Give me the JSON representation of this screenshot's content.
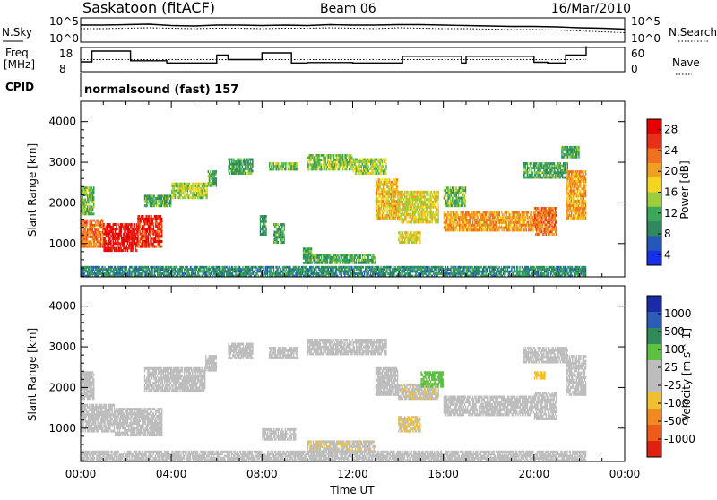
{
  "header": {
    "site": "Saskatoon (fitACF)",
    "beam": "Beam 06",
    "date": "16/Mar/2010"
  },
  "top_panels": {
    "nsky_label": "N.Sky",
    "nsearch_label": "N.Search",
    "nsky_ticks": [
      "10^5",
      "10^0"
    ],
    "freq_label_line1": "Freq.",
    "freq_label_line2": "[MHz]",
    "freq_ticks": [
      "18",
      "8"
    ],
    "nave_label": "Nave",
    "nave_ticks": [
      "60",
      "0"
    ],
    "cpid_label": "CPID",
    "cpid_value": "normalsound (fast) 157"
  },
  "colors": {
    "power_scale": [
      "#1530e8",
      "#2458b8",
      "#2f8860",
      "#3aa858",
      "#9ccd3a",
      "#f5d520",
      "#f0a020",
      "#f07020",
      "#e83018",
      "#e80000"
    ],
    "velocity_scale": [
      "#1a2aa8",
      "#2a5cb8",
      "#2f8c58",
      "#5cc040",
      "#bdbdbd",
      "#bdbdbd",
      "#f0c030",
      "#f08a20",
      "#ee5a18",
      "#e02010"
    ],
    "axis": "#000000",
    "background": "#ffffff"
  },
  "chart_data": [
    {
      "type": "line",
      "title": "N.Sky / N.Search",
      "x_unit": "hours UT",
      "x": [
        0,
        1,
        2,
        3,
        4,
        5,
        6,
        7,
        8,
        9,
        10,
        11,
        12,
        13,
        14,
        15,
        16,
        17,
        18,
        19,
        20,
        21,
        22,
        23,
        24
      ],
      "series": [
        {
          "name": "N.Sky",
          "values": [
            3.6,
            3.6,
            3.7,
            3.8,
            3.5,
            3.4,
            3.6,
            3.6,
            3.5,
            3.6,
            3.5,
            3.7,
            3.6,
            3.6,
            3.7,
            3.7,
            3.6,
            3.5,
            3.4,
            3.3,
            3.3,
            3.2,
            3.0,
            2.9,
            2.7
          ]
        },
        {
          "name": "N.Search",
          "values": [
            2.8,
            2.8,
            2.9,
            3.0,
            2.9,
            2.8,
            2.9,
            2.9,
            2.8,
            2.9,
            2.9,
            3.0,
            2.9,
            2.8,
            3.0,
            2.9,
            2.8,
            2.8,
            2.7,
            2.6,
            2.6,
            2.5,
            2.3,
            2.1,
            1.9
          ]
        }
      ],
      "ylim": [
        0,
        5
      ],
      "yscale": "log10"
    },
    {
      "type": "line",
      "title": "Freq. [MHz] / Nave",
      "x_unit": "hours UT",
      "x": [
        0.0,
        0.5,
        0.5,
        2.2,
        2.2,
        3.8,
        3.8,
        6.0,
        6.0,
        6.5,
        6.5,
        8.0,
        8.0,
        9.3,
        9.3,
        10.0,
        10.0,
        12.0,
        12.0,
        14.2,
        14.2,
        16.8,
        16.8,
        17.0,
        17.0,
        20.0,
        20.0,
        20.6,
        20.6,
        21.2,
        21.2,
        21.4,
        21.4,
        22.3,
        22.3
      ],
      "series": [
        {
          "name": "Freq.",
          "values": [
            12,
            12,
            16.8,
            16.8,
            12.5,
            12.5,
            11.5,
            11.5,
            15,
            15,
            13,
            13,
            16,
            16,
            11.5,
            11.5,
            11.7,
            11.7,
            11.5,
            11.5,
            14.5,
            14.5,
            11.5,
            11.5,
            14.5,
            14.5,
            11.8,
            11.8,
            11.5,
            11.5,
            11.5,
            11.5,
            15,
            15,
            19
          ]
        },
        {
          "name": "Nave",
          "values": [
            30,
            30,
            30,
            30,
            30,
            30,
            30,
            30,
            30,
            30,
            30,
            30,
            30,
            30,
            30,
            30,
            30,
            30,
            30,
            30,
            30,
            30,
            30,
            30,
            30,
            30,
            30,
            30,
            30,
            30,
            30,
            30,
            30,
            30,
            30
          ]
        }
      ],
      "ylim_freq": [
        8,
        18
      ],
      "ylim_nave": [
        0,
        60
      ]
    },
    {
      "type": "heatmap",
      "title": "Power [dB]",
      "xlabel": "",
      "ylabel": "Slant Range [km]",
      "x_ticks": [
        "",
        "",
        "",
        "",
        "",
        "",
        ""
      ],
      "y_ticks": [
        "4000",
        "3000",
        "2000",
        "1000"
      ],
      "xlim": [
        0,
        24
      ],
      "ylim": [
        180,
        4500
      ],
      "colorbar_label": "Power [dB]",
      "colorbar_ticks": [
        "28",
        "24",
        "20",
        "16",
        "12",
        "8",
        "4"
      ],
      "colorbar_range": [
        0,
        30
      ],
      "regions": [
        {
          "t0": 0.0,
          "t1": 1.0,
          "r0": 900,
          "r1": 1600,
          "level": 22
        },
        {
          "t0": 1.0,
          "t1": 2.5,
          "r0": 800,
          "r1": 1500,
          "level": 28
        },
        {
          "t0": 2.5,
          "t1": 3.6,
          "r0": 900,
          "r1": 1700,
          "level": 26
        },
        {
          "t0": 0.0,
          "t1": 0.6,
          "r0": 1700,
          "r1": 2400,
          "level": 12
        },
        {
          "t0": 2.8,
          "t1": 4.0,
          "r0": 1900,
          "r1": 2200,
          "level": 10
        },
        {
          "t0": 4.0,
          "t1": 5.6,
          "r0": 2100,
          "r1": 2500,
          "level": 14
        },
        {
          "t0": 5.6,
          "t1": 6.0,
          "r0": 2400,
          "r1": 2800,
          "level": 10
        },
        {
          "t0": 6.5,
          "t1": 7.6,
          "r0": 2700,
          "r1": 3100,
          "level": 10
        },
        {
          "t0": 7.9,
          "t1": 8.2,
          "r0": 1200,
          "r1": 1700,
          "level": 9
        },
        {
          "t0": 8.3,
          "t1": 9.6,
          "r0": 2800,
          "r1": 3000,
          "level": 12
        },
        {
          "t0": 8.5,
          "t1": 9.0,
          "r0": 1000,
          "r1": 1500,
          "level": 10
        },
        {
          "t0": 9.8,
          "t1": 10.2,
          "r0": 500,
          "r1": 900,
          "level": 10
        },
        {
          "t0": 10.0,
          "t1": 12.0,
          "r0": 2800,
          "r1": 3200,
          "level": 13
        },
        {
          "t0": 12.0,
          "t1": 13.5,
          "r0": 2700,
          "r1": 3100,
          "level": 14
        },
        {
          "t0": 10.0,
          "t1": 13.0,
          "r0": 500,
          "r1": 750,
          "level": 10
        },
        {
          "t0": 13.0,
          "t1": 14.0,
          "r0": 1600,
          "r1": 2600,
          "level": 18
        },
        {
          "t0": 14.0,
          "t1": 15.8,
          "r0": 1500,
          "r1": 2300,
          "level": 16
        },
        {
          "t0": 14.0,
          "t1": 15.0,
          "r0": 1000,
          "r1": 1300,
          "level": 16
        },
        {
          "t0": 16.0,
          "t1": 20.0,
          "r0": 1300,
          "r1": 1800,
          "level": 20
        },
        {
          "t0": 16.0,
          "t1": 17.0,
          "r0": 1900,
          "r1": 2400,
          "level": 12
        },
        {
          "t0": 20.0,
          "t1": 21.0,
          "r0": 1200,
          "r1": 1900,
          "level": 22
        },
        {
          "t0": 19.5,
          "t1": 21.5,
          "r0": 2600,
          "r1": 3000,
          "level": 10
        },
        {
          "t0": 21.4,
          "t1": 22.3,
          "r0": 1600,
          "r1": 2800,
          "level": 20
        },
        {
          "t0": 21.2,
          "t1": 22.0,
          "r0": 3100,
          "r1": 3400,
          "level": 10
        },
        {
          "t0": 0.0,
          "t1": 22.3,
          "r0": 180,
          "r1": 450,
          "level": 8
        }
      ]
    },
    {
      "type": "heatmap",
      "title": "Velocity [m s^-1]",
      "xlabel": "Time UT",
      "ylabel": "Slant Range [km]",
      "x_ticks": [
        "00:00",
        "04:00",
        "08:00",
        "12:00",
        "16:00",
        "20:00",
        "00:00"
      ],
      "y_ticks": [
        "4000",
        "3000",
        "2000",
        "1000"
      ],
      "xlim": [
        0,
        24
      ],
      "ylim": [
        180,
        4500
      ],
      "colorbar_label": "Velocity [m s^-1]",
      "colorbar_ticks": [
        "1000",
        "500",
        "100",
        "25",
        "-25",
        "-100",
        "-500",
        "-1000"
      ],
      "colorbar_range": [
        -1200,
        1200
      ],
      "regions": [
        {
          "t0": 0.0,
          "t1": 1.5,
          "r0": 900,
          "r1": 1600,
          "level": 150
        },
        {
          "t0": 1.5,
          "t1": 3.6,
          "r0": 800,
          "r1": 1500,
          "level": 80
        },
        {
          "t0": 0.0,
          "t1": 0.6,
          "r0": 1700,
          "r1": 2400,
          "level": 120
        },
        {
          "t0": 2.8,
          "t1": 5.5,
          "r0": 1900,
          "r1": 2500,
          "level": 0
        },
        {
          "t0": 5.5,
          "t1": 6.0,
          "r0": 2400,
          "r1": 2800,
          "level": 0
        },
        {
          "t0": 6.5,
          "t1": 7.6,
          "r0": 2700,
          "r1": 3100,
          "level": 0
        },
        {
          "t0": 8.0,
          "t1": 9.5,
          "r0": 700,
          "r1": 1000,
          "level": -150
        },
        {
          "t0": 8.3,
          "t1": 9.6,
          "r0": 2700,
          "r1": 3000,
          "level": 0
        },
        {
          "t0": 10.0,
          "t1": 13.5,
          "r0": 2800,
          "r1": 3200,
          "level": 0
        },
        {
          "t0": 10.0,
          "t1": 13.0,
          "r0": 400,
          "r1": 700,
          "level": -200
        },
        {
          "t0": 13.0,
          "t1": 14.0,
          "r0": 1800,
          "r1": 2500,
          "level": 0
        },
        {
          "t0": 14.0,
          "t1": 15.8,
          "r0": 1700,
          "r1": 2100,
          "level": -200
        },
        {
          "t0": 14.0,
          "t1": 15.0,
          "r0": 900,
          "r1": 1300,
          "level": -250
        },
        {
          "t0": 15.0,
          "t1": 16.0,
          "r0": 2000,
          "r1": 2400,
          "level": 300
        },
        {
          "t0": 16.0,
          "t1": 20.0,
          "r0": 1300,
          "r1": 1800,
          "level": 0
        },
        {
          "t0": 20.0,
          "t1": 21.0,
          "r0": 1200,
          "r1": 1900,
          "level": -50
        },
        {
          "t0": 19.5,
          "t1": 21.5,
          "r0": 2600,
          "r1": 3000,
          "level": 0
        },
        {
          "t0": 21.4,
          "t1": 22.3,
          "r0": 1800,
          "r1": 2800,
          "level": 0
        },
        {
          "t0": 20.0,
          "t1": 20.5,
          "r0": 2200,
          "r1": 2400,
          "level": -400
        },
        {
          "t0": 0.0,
          "t1": 22.3,
          "r0": 180,
          "r1": 450,
          "level": 0
        }
      ]
    }
  ]
}
